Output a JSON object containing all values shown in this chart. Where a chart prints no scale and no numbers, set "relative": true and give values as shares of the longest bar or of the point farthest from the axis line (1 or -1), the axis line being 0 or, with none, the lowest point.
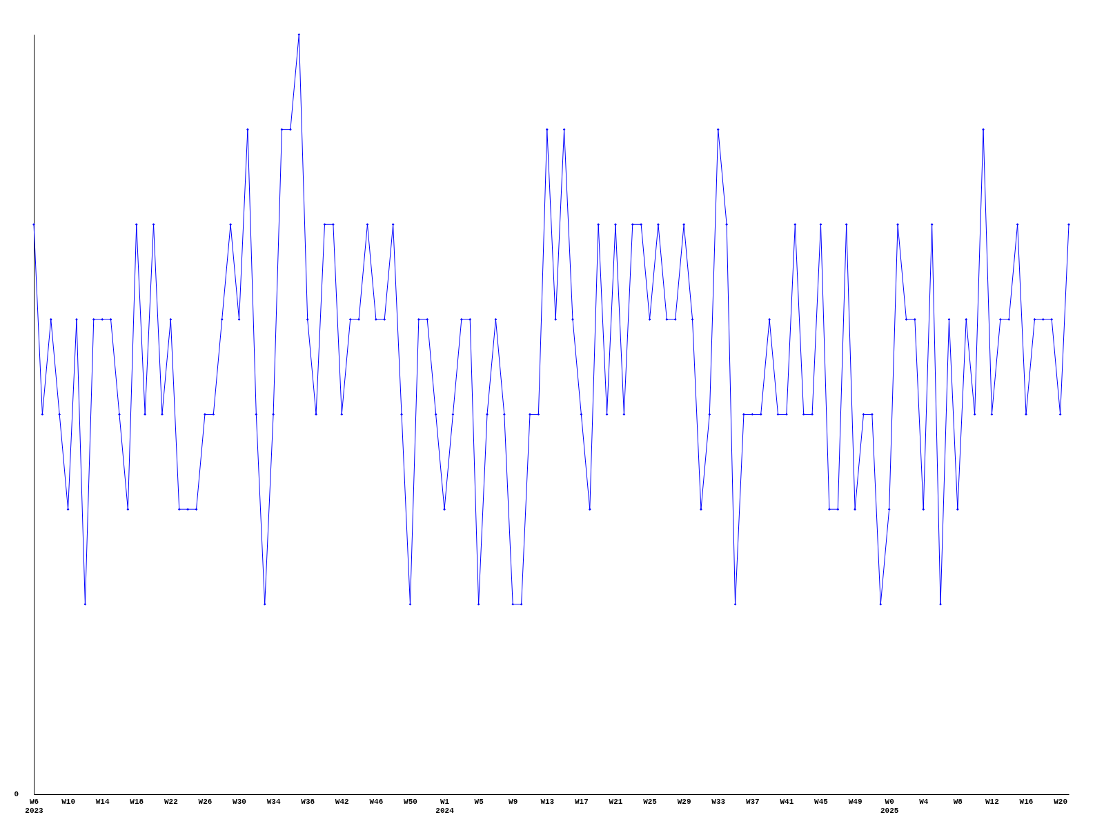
{
  "chart_data": {
    "type": "line",
    "relative": true,
    "marker": "diamond",
    "line_style": "solid",
    "grid": false,
    "annotations": [
      "0"
    ],
    "categories": [
      "W6\n2023",
      null,
      null,
      null,
      "W10",
      null,
      null,
      null,
      "W14",
      null,
      null,
      null,
      "W18",
      null,
      null,
      null,
      "W22",
      null,
      null,
      null,
      "W26",
      null,
      null,
      null,
      "W30",
      null,
      null,
      null,
      "W34",
      null,
      null,
      null,
      "W38",
      null,
      null,
      null,
      "W42",
      null,
      null,
      null,
      "W46",
      null,
      null,
      null,
      "W50",
      null,
      null,
      null,
      "W1\n2024",
      null,
      null,
      null,
      "W5",
      null,
      null,
      null,
      "W9",
      null,
      null,
      null,
      "W13",
      null,
      null,
      null,
      "W17",
      null,
      null,
      null,
      "W21",
      null,
      null,
      null,
      "W25",
      null,
      null,
      null,
      "W29",
      null,
      null,
      null,
      "W33",
      null,
      null,
      null,
      "W37",
      null,
      null,
      null,
      "W41",
      null,
      null,
      null,
      "W45",
      null,
      null,
      null,
      "W49",
      null,
      null,
      null,
      "W0\n2025",
      null,
      null,
      null,
      "W4",
      null,
      null,
      null,
      "W8",
      null,
      null,
      null,
      "W12",
      null,
      null,
      null,
      "W16",
      null,
      null,
      null,
      "W20",
      null
    ],
    "series": [
      {
        "color": "#0000ff",
        "values": [
          0.75,
          0.5,
          0.625,
          0.5,
          0.375,
          0.625,
          0.25,
          0.625,
          0.625,
          0.625,
          0.5,
          0.375,
          0.75,
          0.5,
          0.75,
          0.5,
          0.625,
          0.375,
          0.375,
          0.375,
          0.5,
          0.5,
          0.625,
          0.75,
          0.625,
          0.875,
          0.5,
          0.25,
          0.5,
          0.875,
          0.875,
          1,
          0.625,
          0.5,
          0.75,
          0.75,
          0.5,
          0.625,
          0.625,
          0.75,
          0.625,
          0.625,
          0.75,
          0.5,
          0.25,
          0.625,
          0.625,
          0.5,
          0.375,
          0.5,
          0.625,
          0.625,
          0.25,
          0.5,
          0.625,
          0.5,
          0.25,
          0.25,
          0.5,
          0.5,
          0.875,
          0.625,
          0.875,
          0.625,
          0.5,
          0.375,
          0.75,
          0.5,
          0.75,
          0.5,
          0.75,
          0.75,
          0.625,
          0.75,
          0.625,
          0.625,
          0.75,
          0.625,
          0.375,
          0.5,
          0.875,
          0.75,
          0.25,
          0.5,
          0.5,
          0.5,
          0.625,
          0.5,
          0.5,
          0.75,
          0.5,
          0.5,
          0.75,
          0.375,
          0.375,
          0.75,
          0.375,
          0.5,
          0.5,
          0.25,
          0.375,
          0.75,
          0.625,
          0.625,
          0.375,
          0.75,
          0.25,
          0.625,
          0.375,
          0.625,
          0.5,
          0.875,
          0.5,
          0.625,
          0.625,
          0.75,
          0.5,
          0.625,
          0.625,
          0.625,
          0.5,
          0.75
        ]
      }
    ]
  }
}
